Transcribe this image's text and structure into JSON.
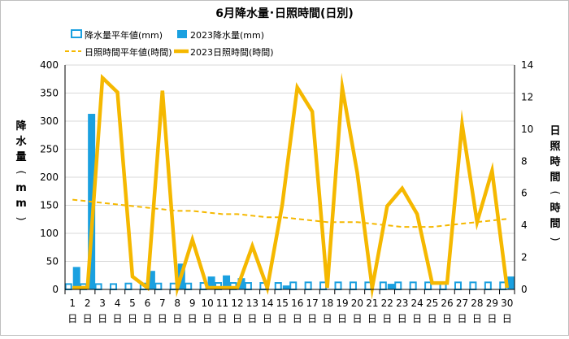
{
  "chart_data": {
    "type": "bar+line",
    "title": "6月降水量･日照時間(日別)",
    "categories": [
      "1",
      "2",
      "3",
      "4",
      "5",
      "6",
      "7",
      "8",
      "9",
      "10",
      "11",
      "12",
      "13",
      "14",
      "15",
      "16",
      "17",
      "18",
      "19",
      "20",
      "21",
      "22",
      "23",
      "24",
      "25",
      "26",
      "27",
      "28",
      "29",
      "30"
    ],
    "category_suffix": "日",
    "ylabel_left": "降水量(mm)",
    "ylabel_right": "日照時間(時間)",
    "ylim_left": [
      0,
      400
    ],
    "yticks_left": [
      0,
      50,
      100,
      150,
      200,
      250,
      300,
      350,
      400
    ],
    "ylim_right": [
      0,
      14
    ],
    "yticks_right": [
      0,
      2,
      4,
      6,
      8,
      10,
      12,
      14
    ],
    "grid": true,
    "legend_position": "top",
    "series": [
      {
        "name": "降水量平年値(mm)",
        "kind": "bar-outline",
        "axis": "left",
        "color": "#1aa0e0",
        "values": [
          11,
          11,
          11,
          11,
          12,
          12,
          12,
          12,
          12,
          13,
          13,
          13,
          13,
          13,
          13,
          14,
          14,
          14,
          14,
          14,
          14,
          14,
          14,
          14,
          14,
          14,
          14,
          14,
          14,
          14
        ]
      },
      {
        "name": "2023降水量(mm)",
        "kind": "bar-filled",
        "axis": "left",
        "color": "#1aa0e0",
        "values": [
          40,
          313,
          0,
          0,
          0,
          33,
          0,
          46,
          0,
          23,
          25,
          20,
          0,
          0,
          7,
          0,
          0,
          0,
          0,
          0,
          0,
          10,
          0,
          0,
          0,
          0,
          0,
          0,
          0,
          23
        ]
      },
      {
        "name": "日照時間平年値(時間)",
        "kind": "line-dashed",
        "axis": "right",
        "color": "#f5b800",
        "values": [
          5.6,
          5.5,
          5.4,
          5.3,
          5.2,
          5.1,
          5.0,
          4.9,
          4.9,
          4.8,
          4.7,
          4.7,
          4.6,
          4.5,
          4.5,
          4.4,
          4.3,
          4.2,
          4.2,
          4.2,
          4.1,
          4.0,
          3.9,
          3.9,
          3.9,
          4.0,
          4.1,
          4.2,
          4.3,
          4.4
        ]
      },
      {
        "name": "2023日照時間(時間)",
        "kind": "line-solid",
        "axis": "right",
        "color": "#f5b800",
        "values": [
          0.1,
          0.1,
          13.2,
          12.3,
          0.8,
          0.1,
          12.4,
          0.1,
          3.1,
          0.1,
          0.1,
          0.1,
          2.7,
          0.1,
          5.3,
          12.6,
          11.1,
          0.1,
          12.6,
          7.3,
          0.1,
          5.2,
          6.3,
          4.7,
          0.4,
          0.4,
          10.3,
          4.2,
          7.4,
          0.1
        ]
      }
    ]
  }
}
